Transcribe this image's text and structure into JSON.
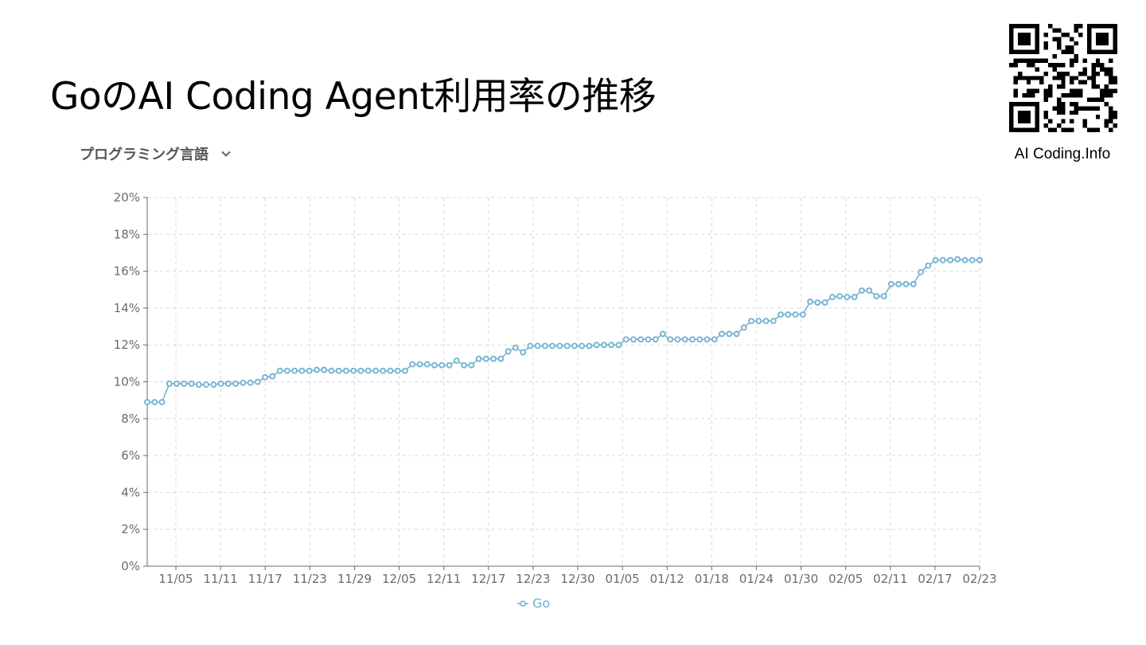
{
  "page": {
    "title": "GoのAI Coding Agent利用率の推移",
    "selector_label": "プログラミング言語",
    "qr_caption": "AI Coding.Info"
  },
  "icons": {
    "selector": "chevron-down-icon",
    "qr": "qr-code-icon",
    "legend": "legend-line-marker-icon"
  },
  "colors": {
    "series": "#6fb1cf",
    "grid": "#d9d9d9",
    "axis": "#6b6b6b"
  },
  "chart_data": {
    "type": "line",
    "title": "",
    "xlabel": "",
    "ylabel": "",
    "ylim": [
      0,
      20
    ],
    "y_ticks": [
      "0%",
      "2%",
      "4%",
      "6%",
      "8%",
      "10%",
      "12%",
      "14%",
      "16%",
      "18%",
      "20%"
    ],
    "x_ticks": [
      "11/05",
      "11/11",
      "11/17",
      "11/23",
      "11/29",
      "12/05",
      "12/11",
      "12/17",
      "12/23",
      "12/30",
      "01/05",
      "01/12",
      "01/18",
      "01/24",
      "01/30",
      "02/05",
      "02/11",
      "02/17",
      "02/23"
    ],
    "grid": true,
    "legend_position": "bottom",
    "series": [
      {
        "name": "Go",
        "values": [
          8.9,
          8.9,
          8.9,
          9.9,
          9.9,
          9.9,
          9.9,
          9.85,
          9.85,
          9.85,
          9.9,
          9.9,
          9.9,
          9.95,
          9.95,
          10.0,
          10.25,
          10.3,
          10.6,
          10.6,
          10.6,
          10.6,
          10.6,
          10.65,
          10.65,
          10.6,
          10.6,
          10.6,
          10.6,
          10.6,
          10.6,
          10.6,
          10.6,
          10.6,
          10.6,
          10.6,
          10.95,
          10.95,
          10.95,
          10.9,
          10.9,
          10.9,
          11.15,
          10.9,
          10.9,
          11.25,
          11.25,
          11.25,
          11.25,
          11.65,
          11.85,
          11.6,
          11.95,
          11.95,
          11.95,
          11.95,
          11.95,
          11.95,
          11.95,
          11.95,
          11.95,
          12.0,
          12.0,
          12.0,
          12.0,
          12.3,
          12.3,
          12.3,
          12.3,
          12.3,
          12.6,
          12.3,
          12.3,
          12.3,
          12.3,
          12.3,
          12.3,
          12.3,
          12.6,
          12.6,
          12.6,
          12.95,
          13.3,
          13.3,
          13.3,
          13.3,
          13.65,
          13.65,
          13.65,
          13.65,
          14.35,
          14.3,
          14.3,
          14.6,
          14.65,
          14.6,
          14.6,
          14.95,
          14.95,
          14.65,
          14.65,
          15.3,
          15.3,
          15.3,
          15.3,
          15.95,
          16.3,
          16.6,
          16.6,
          16.6,
          16.65,
          16.6,
          16.6,
          16.6
        ]
      }
    ]
  }
}
